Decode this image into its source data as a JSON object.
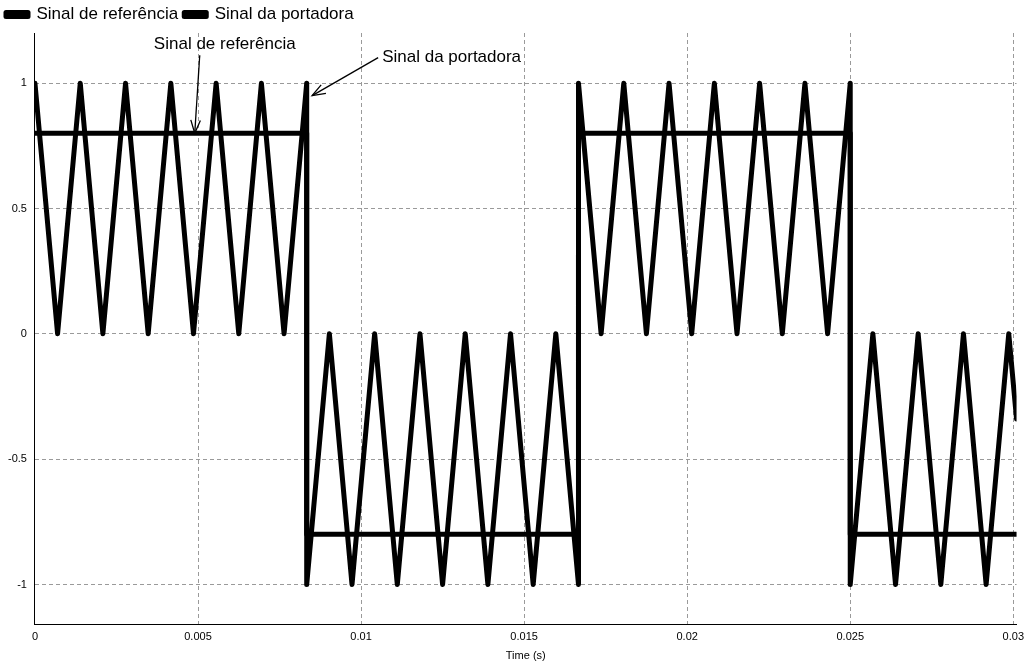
{
  "chart_data": {
    "type": "line",
    "xlabel": "Time (s)",
    "legend": "top left",
    "grid": true,
    "marker": "none",
    "line_style": "solid",
    "xlim": [
      0,
      0.0301
    ],
    "ylim": [
      -1.16,
      1.2
    ],
    "xticks": [
      0,
      0.005,
      0.01,
      0.015,
      0.02,
      0.025,
      0.03
    ],
    "yticks": [
      -1,
      -0.5,
      0,
      0.5,
      1
    ],
    "annotations": [
      {
        "text": "Sinal de referência",
        "x": 0.0049,
        "y": 0.8
      },
      {
        "text": "Sinal da portadora",
        "x": 0.0085,
        "y": 0.95
      }
    ],
    "series": [
      {
        "name": "Sinal de referência",
        "color": "#000000",
        "x": [
          0,
          0.008333,
          0.008333,
          0.016667,
          0.016667,
          0.025,
          0.025,
          0.0301
        ],
        "values": [
          0.8,
          0.8,
          -0.8,
          -0.8,
          0.8,
          0.8,
          -0.8,
          -0.8
        ]
      },
      {
        "name": "Sinal da portadora",
        "color": "#000000",
        "x": [
          0,
          0.000694,
          0.001389,
          0.002083,
          0.002778,
          0.003472,
          0.004167,
          0.004861,
          0.005556,
          0.00625,
          0.006944,
          0.007639,
          0.008333,
          0.008333,
          0.009028,
          0.009722,
          0.010417,
          0.011111,
          0.011806,
          0.0125,
          0.013194,
          0.013889,
          0.014583,
          0.015278,
          0.015972,
          0.016667,
          0.016667,
          0.017361,
          0.018056,
          0.01875,
          0.019444,
          0.020139,
          0.020833,
          0.021528,
          0.022222,
          0.022917,
          0.023611,
          0.024306,
          0.025,
          0.025,
          0.025694,
          0.026389,
          0.027083,
          0.027778,
          0.028472,
          0.029167,
          0.029861,
          0.0301
        ],
        "values": [
          1,
          0,
          1,
          0,
          1,
          0,
          1,
          0,
          1,
          0,
          1,
          0,
          1,
          -1,
          0,
          -1,
          0,
          -1,
          0,
          -1,
          0,
          -1,
          0,
          -1,
          0,
          -1,
          1,
          0,
          1,
          0,
          1,
          0,
          1,
          0,
          1,
          0,
          1,
          0,
          1,
          -1,
          0,
          -1,
          0,
          -1,
          0,
          -1,
          0,
          -0.34
        ]
      }
    ]
  }
}
